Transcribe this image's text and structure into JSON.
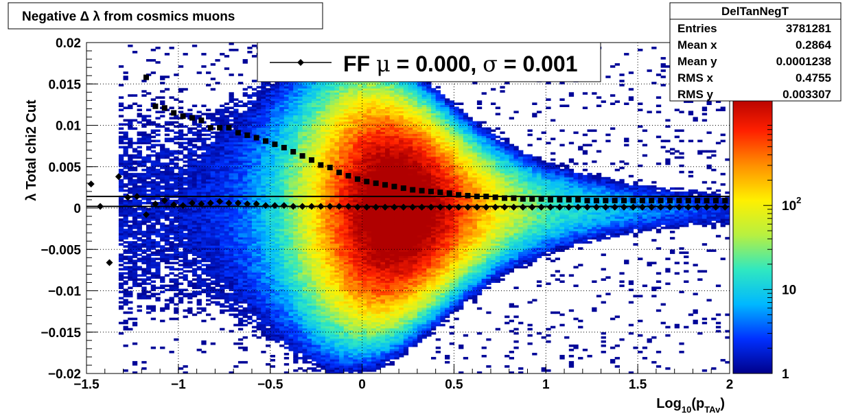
{
  "chart_data": {
    "type": "heatmap",
    "title": "Negative Δ λ from cosmics muons",
    "xlabel": {
      "base": "Log",
      "sub1": "10",
      "mid": "(p",
      "sub2": "TAv",
      "end": ")"
    },
    "ylabel": "λ  Total chi2 Cut",
    "xlim": [
      -1.5,
      2.0
    ],
    "ylim": [
      -0.02,
      0.02
    ],
    "x_ticks": [
      -1.5,
      -1,
      -0.5,
      0,
      0.5,
      1,
      1.5,
      2
    ],
    "x_tick_labels": [
      "−1.5",
      "−1",
      "−0.5",
      "0",
      "0.5",
      "1",
      "1.5",
      "2"
    ],
    "y_ticks": [
      -0.02,
      -0.015,
      -0.01,
      -0.005,
      0,
      0.005,
      0.01,
      0.015,
      0.02
    ],
    "y_tick_labels": [
      "−0.02",
      "−0.015",
      "−0.01",
      "−0.005",
      "0",
      "0.005",
      "0.01",
      "0.015",
      "0.02"
    ],
    "grid": true,
    "colorbar": {
      "scale": "log",
      "range": [
        1,
        2000
      ],
      "tick_values": [
        1,
        10,
        100
      ],
      "tick_labels": [
        {
          "base": "1",
          "exp": ""
        },
        {
          "base": "10",
          "exp": ""
        },
        {
          "base": "10",
          "exp": "2"
        }
      ],
      "colors": [
        "#00008a",
        "#0030ff",
        "#00b8ff",
        "#30e8c0",
        "#b8f040",
        "#fff000",
        "#ff9000",
        "#ff2000",
        "#b00000"
      ]
    },
    "stats_box": {
      "name": "DelTanNegT",
      "rows": [
        {
          "label": "Entries",
          "value": "3781281"
        },
        {
          "label": "Mean x",
          "value": "0.2864"
        },
        {
          "label": "Mean y",
          "value": "0.0001238"
        },
        {
          "label": "RMS x",
          "value": "0.4755"
        },
        {
          "label": "RMS y",
          "value": "0.003307"
        }
      ]
    },
    "legend": {
      "placement": "top-center",
      "entries": [
        {
          "label_pre": "FF ",
          "mu": "μ",
          "label_mid": " =  0.000, ",
          "sigma": "σ",
          "label_post": " =   0.001"
        }
      ]
    },
    "series": [
      {
        "style": "circle-marker",
        "x": [
          -1.475,
          -1.425,
          -1.375,
          -1.325,
          -1.275,
          -1.225,
          -1.175,
          -1.125,
          -1.075,
          -1.025,
          -0.975,
          -0.925,
          -0.875,
          -0.825,
          -0.775,
          -0.725,
          -0.675,
          -0.625,
          -0.575,
          -0.525,
          -0.475,
          -0.425,
          -0.375,
          -0.325,
          -0.275,
          -0.225,
          -0.175,
          -0.125,
          -0.075,
          -0.025,
          0.025,
          0.075,
          0.125,
          0.175,
          0.225,
          0.275,
          0.325,
          0.375,
          0.425,
          0.475,
          0.525,
          0.575,
          0.625,
          0.675,
          0.725,
          0.775,
          0.825,
          0.875,
          0.925,
          0.975,
          1.025,
          1.075,
          1.125,
          1.175,
          1.225,
          1.275,
          1.325,
          1.375,
          1.425,
          1.475,
          1.525,
          1.575,
          1.625,
          1.675,
          1.725,
          1.775,
          1.825,
          1.875,
          1.925,
          1.975
        ],
        "y": [
          0.0029,
          0.0002,
          -0.0066,
          0.0038,
          0.0013,
          0.0014,
          -0.0008,
          0.0005,
          0.0009,
          0.0004,
          0.0003,
          0.0006,
          0.0005,
          0.0006,
          0.0008,
          0.0006,
          0.0006,
          0.0005,
          0.0005,
          0.0003,
          0.0003,
          0.0003,
          0.0002,
          0.0002,
          0.0002,
          0.0002,
          0.0002,
          0.0002,
          0.0002,
          0.0001,
          0.0001,
          0.0001,
          0.0001,
          0.0001,
          0.0001,
          0.0001,
          0.0001,
          0.0001,
          0.0001,
          0.0001,
          0.0001,
          0.0001,
          0.0001,
          0.0001,
          0.0001,
          0.0001,
          0.0001,
          0.0001,
          0.0001,
          0.0001,
          0.0001,
          0.0001,
          0.0001,
          0.0001,
          0.0001,
          0.0001,
          0.0001,
          0.0001,
          0.0001,
          0.0001,
          0.0001,
          0.0001,
          0.0001,
          0.0001,
          0.0001,
          0.0001,
          0.0001,
          0.0001,
          0.0001,
          0.0001
        ]
      },
      {
        "style": "square-marker",
        "x": [
          -1.175,
          -1.125,
          -1.075,
          -1.025,
          -0.975,
          -0.925,
          -0.875,
          -0.825,
          -0.775,
          -0.725,
          -0.675,
          -0.625,
          -0.575,
          -0.525,
          -0.475,
          -0.425,
          -0.375,
          -0.325,
          -0.275,
          -0.225,
          -0.175,
          -0.125,
          -0.075,
          -0.025,
          0.025,
          0.075,
          0.125,
          0.175,
          0.225,
          0.275,
          0.325,
          0.375,
          0.425,
          0.475,
          0.525,
          0.575,
          0.625,
          0.675,
          0.725,
          0.775,
          0.825,
          0.875,
          0.925,
          0.975,
          1.025,
          1.075,
          1.125,
          1.175,
          1.225,
          1.275,
          1.325,
          1.375,
          1.425,
          1.475,
          1.525,
          1.575,
          1.625,
          1.675,
          1.725,
          1.775,
          1.825,
          1.875,
          1.925,
          1.975
        ],
        "y": [
          0.0158,
          0.0123,
          0.0121,
          0.0115,
          0.0111,
          0.0109,
          0.0106,
          0.0097,
          0.0097,
          0.0097,
          0.0091,
          0.0088,
          0.0085,
          0.0081,
          0.0077,
          0.0073,
          0.0068,
          0.0063,
          0.0058,
          0.0052,
          0.0049,
          0.0043,
          0.0039,
          0.0035,
          0.0032,
          0.003,
          0.0028,
          0.0026,
          0.0024,
          0.0022,
          0.0021,
          0.002,
          0.0019,
          0.0018,
          0.0016,
          0.0015,
          0.0014,
          0.0014,
          0.0013,
          0.0012,
          0.0012,
          0.0011,
          0.0011,
          0.0011,
          0.001,
          0.001,
          0.001,
          0.001,
          0.0009,
          0.0009,
          0.0009,
          0.0009,
          0.0009,
          0.0009,
          0.0009,
          0.0009,
          0.0009,
          0.0009,
          0.0009,
          0.0009,
          0.0009,
          0.0009,
          0.0009,
          0.0009
        ]
      }
    ],
    "reference_lines": [
      {
        "style": "horizontal",
        "y": 0.0014
      },
      {
        "style": "horizontal",
        "y": 0.0002
      }
    ]
  }
}
